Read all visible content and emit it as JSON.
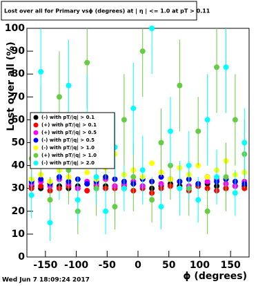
{
  "chart_data": {
    "type": "scatter",
    "title": "Lost over all for Primary vsϕ (degrees) at | η | <= 1.0 at pT > 0.11",
    "x_label": "ϕ (degrees)",
    "y_label": "Lost over all (%)",
    "timestamp": "Wed Jun  7 18:09:24 2017",
    "xlim": [
      -180,
      180
    ],
    "ylim": [
      0,
      100
    ],
    "xticks": [
      -150,
      -100,
      -50,
      0,
      50,
      100,
      150
    ],
    "yticks": [
      0,
      10,
      20,
      30,
      40,
      50,
      60,
      70,
      80,
      90,
      100
    ],
    "x": [
      -172.5,
      -157.5,
      -142.5,
      -127.5,
      -112.5,
      -97.5,
      -82.5,
      -67.5,
      -52.5,
      -37.5,
      -22.5,
      -7.5,
      7.5,
      22.5,
      37.5,
      52.5,
      67.5,
      82.5,
      97.5,
      112.5,
      127.5,
      142.5,
      157.5,
      172.5
    ],
    "series": [
      {
        "name": "(-) with pT/|q| > 0.1",
        "color": "#000000",
        "values": [
          31,
          30,
          32,
          31,
          30,
          31,
          32,
          30,
          31,
          31,
          30,
          32,
          31,
          30,
          31,
          32,
          31,
          30,
          31,
          32,
          31,
          30,
          31,
          31
        ]
      },
      {
        "name": "(+) with pT/|q| > 0.1",
        "color": "#ff0000",
        "values": [
          30,
          31,
          29,
          30,
          31,
          30,
          29,
          31,
          30,
          30,
          31,
          29,
          30,
          28,
          30,
          31,
          30,
          29,
          31,
          30,
          29,
          30,
          31,
          30
        ]
      },
      {
        "name": "(+) with pT/|q| > 0.5",
        "color": "#ff00ff",
        "values": [
          32,
          33,
          31,
          34,
          32,
          30,
          33,
          32,
          34,
          31,
          32,
          33,
          31,
          33,
          32,
          34,
          33,
          31,
          32,
          33,
          34,
          32,
          31,
          33
        ]
      },
      {
        "name": "(-) with pT/|q| > 0.5",
        "color": "#0000ff",
        "values": [
          33,
          34,
          32,
          35,
          33,
          34,
          32,
          33,
          35,
          34,
          33,
          32,
          34,
          33,
          35,
          34,
          33,
          34,
          32,
          35,
          33,
          34,
          33,
          32
        ]
      },
      {
        "name": "(-) with pT/|q| > 1.0",
        "color": "#ffff00",
        "values": [
          34,
          36,
          33,
          38,
          35,
          40,
          37,
          34,
          39,
          45,
          36,
          38,
          35,
          41,
          37,
          34,
          39,
          36,
          40,
          35,
          38,
          42,
          36,
          37
        ]
      },
      {
        "name": "(+) with pT/|q| > 1.0",
        "color": "#66cc44",
        "values": [
          43,
          55,
          25,
          70,
          38,
          20,
          85,
          30,
          45,
          22,
          60,
          35,
          90,
          25,
          50,
          40,
          75,
          30,
          55,
          20,
          83,
          35,
          60,
          45
        ],
        "errors": [
          15,
          20,
          10,
          20,
          15,
          10,
          20,
          12,
          15,
          10,
          20,
          15,
          20,
          10,
          15,
          15,
          20,
          12,
          15,
          10,
          20,
          15,
          20,
          15
        ]
      },
      {
        "name": "(-) with pT/|q| > 2.0",
        "color": "#00ffff",
        "values": [
          27,
          81,
          15,
          40,
          75,
          25,
          60,
          35,
          20,
          48,
          30,
          65,
          38,
          100,
          22,
          55,
          30,
          40,
          25,
          60,
          35,
          83,
          28,
          50
        ],
        "errors": [
          10,
          20,
          8,
          15,
          20,
          10,
          20,
          12,
          10,
          15,
          10,
          20,
          15,
          20,
          10,
          15,
          12,
          15,
          10,
          20,
          12,
          20,
          10,
          15
        ]
      }
    ]
  }
}
